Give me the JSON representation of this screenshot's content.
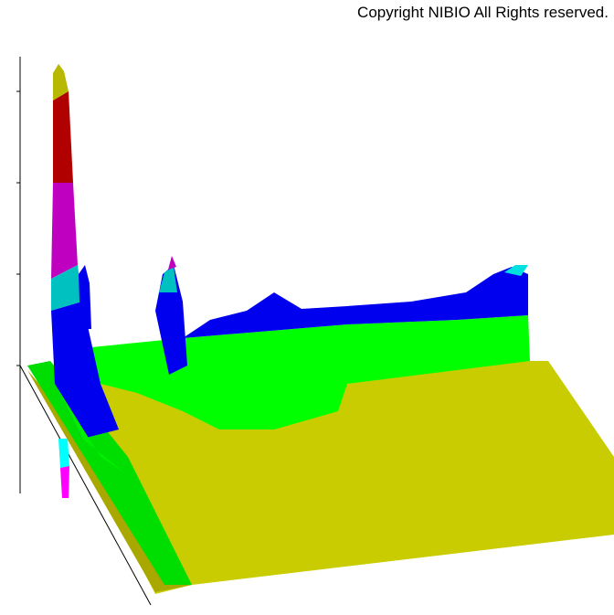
{
  "copyright": "Copyright NIBIO All Rights reserved.",
  "chart_data": {
    "type": "3d-surface",
    "title": "",
    "xlabel": "",
    "ylabel": "",
    "zlabel": "",
    "grid": false,
    "legend": "none",
    "color_bands": [
      "#c8c800",
      "#00ff00",
      "#0000ee",
      "#00c8c8",
      "#c000c0",
      "#b00000",
      "#b8b800"
    ],
    "description_peaks": [
      {
        "position": "front-left",
        "relative_height": 1.0
      },
      {
        "position": "mid-left",
        "relative_height": 0.38
      },
      {
        "position": "mid",
        "relative_height": 0.18
      },
      {
        "position": "right-end",
        "relative_height": 0.28
      }
    ]
  }
}
